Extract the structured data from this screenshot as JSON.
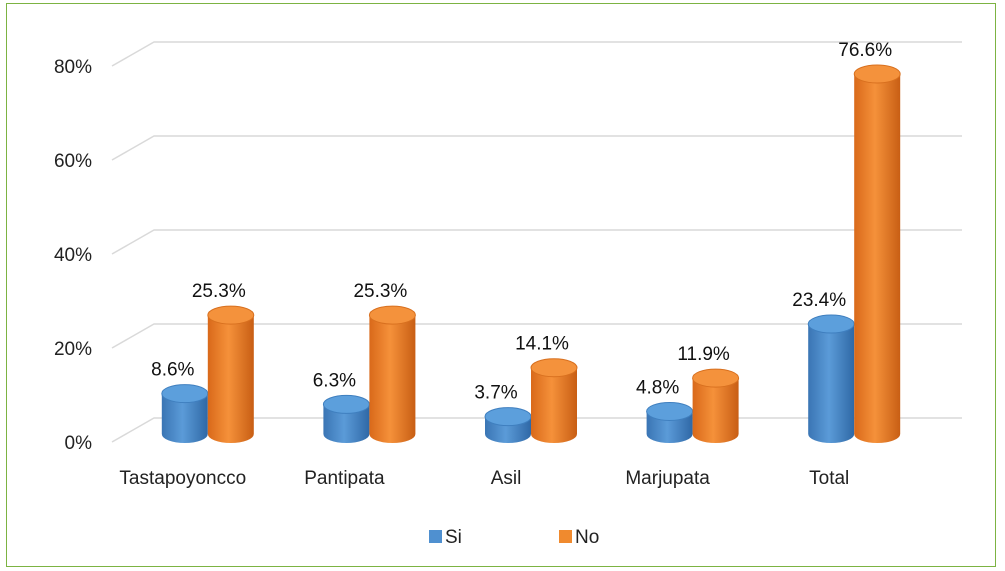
{
  "chart_data": {
    "type": "bar",
    "style": "3d-cylinder",
    "categories": [
      "Tastapoyoncco",
      "Pantipata",
      "Asil",
      "Marjupata",
      "Total"
    ],
    "series": [
      {
        "name": "Si",
        "color": "#4f90d0",
        "values": [
          8.6,
          6.3,
          3.7,
          4.8,
          23.4
        ],
        "labels": [
          "8.6%",
          "6.3%",
          "3.7%",
          "4.8%",
          "23.4%"
        ]
      },
      {
        "name": "No",
        "color": "#f08a2e",
        "values": [
          25.3,
          25.3,
          14.1,
          11.9,
          76.6
        ],
        "labels": [
          "25.3%",
          "25.3%",
          "14.1%",
          "11.9%",
          "76.6%"
        ]
      }
    ],
    "yticks": [
      0,
      20,
      40,
      60,
      80
    ],
    "ytick_labels": [
      "0%",
      "20%",
      "40%",
      "60%",
      "80%"
    ],
    "ylim": [
      0,
      80
    ],
    "grid": true,
    "legend": "bottom"
  }
}
